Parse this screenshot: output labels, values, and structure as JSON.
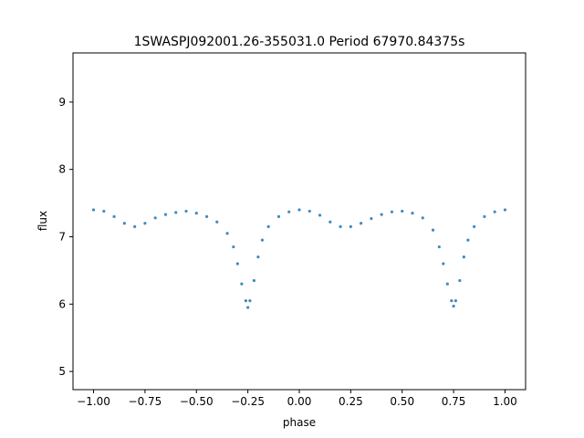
{
  "chart_data": {
    "type": "scatter",
    "title": "1SWASPJ092001.26-355031.0 Period 67970.84375s",
    "xlabel": "phase",
    "ylabel": "flux",
    "xlim": [
      -1.1,
      1.1
    ],
    "ylim": [
      4.73,
      9.73
    ],
    "xticks": [
      -1.0,
      -0.75,
      -0.5,
      -0.25,
      0.0,
      0.25,
      0.5,
      0.75,
      1.0
    ],
    "xtick_labels": [
      "−1.00",
      "−0.75",
      "−0.50",
      "−0.25",
      "0.00",
      "0.25",
      "0.50",
      "0.75",
      "1.00"
    ],
    "yticks": [
      5,
      6,
      7,
      8,
      9
    ],
    "ytick_labels": [
      "5",
      "6",
      "7",
      "8",
      "9"
    ],
    "grid": false,
    "marker_color": "#1f77b4",
    "series": [
      {
        "x": [
          -1.0,
          -0.95,
          -0.9,
          -0.85,
          -0.8,
          -0.75,
          -0.7,
          -0.65,
          -0.6,
          -0.55,
          -0.5,
          -0.45,
          -0.4,
          -0.35,
          -0.32,
          -0.3,
          -0.28,
          -0.26,
          -0.25,
          -0.24,
          -0.22,
          -0.2,
          -0.18,
          -0.15,
          -0.1,
          -0.05,
          0.0,
          0.05,
          0.1,
          0.15,
          0.2,
          0.25,
          0.3,
          0.35,
          0.4,
          0.45,
          0.5,
          0.55,
          0.6,
          0.65,
          0.68,
          0.7,
          0.72,
          0.74,
          0.75,
          0.76,
          0.78,
          0.8,
          0.82,
          0.85,
          0.9,
          0.95,
          1.0
        ],
        "y": [
          7.4,
          7.38,
          7.3,
          7.2,
          7.15,
          7.2,
          7.28,
          7.33,
          7.36,
          7.38,
          7.35,
          7.3,
          7.22,
          7.05,
          6.85,
          6.6,
          6.3,
          6.05,
          5.95,
          6.05,
          6.35,
          6.7,
          6.95,
          7.15,
          7.3,
          7.37,
          7.4,
          7.38,
          7.32,
          7.22,
          7.15,
          7.15,
          7.2,
          7.27,
          7.33,
          7.37,
          7.38,
          7.35,
          7.28,
          7.1,
          6.85,
          6.6,
          6.3,
          6.05,
          5.97,
          6.05,
          6.35,
          6.7,
          6.95,
          7.15,
          7.3,
          7.37,
          7.4
        ]
      }
    ]
  }
}
